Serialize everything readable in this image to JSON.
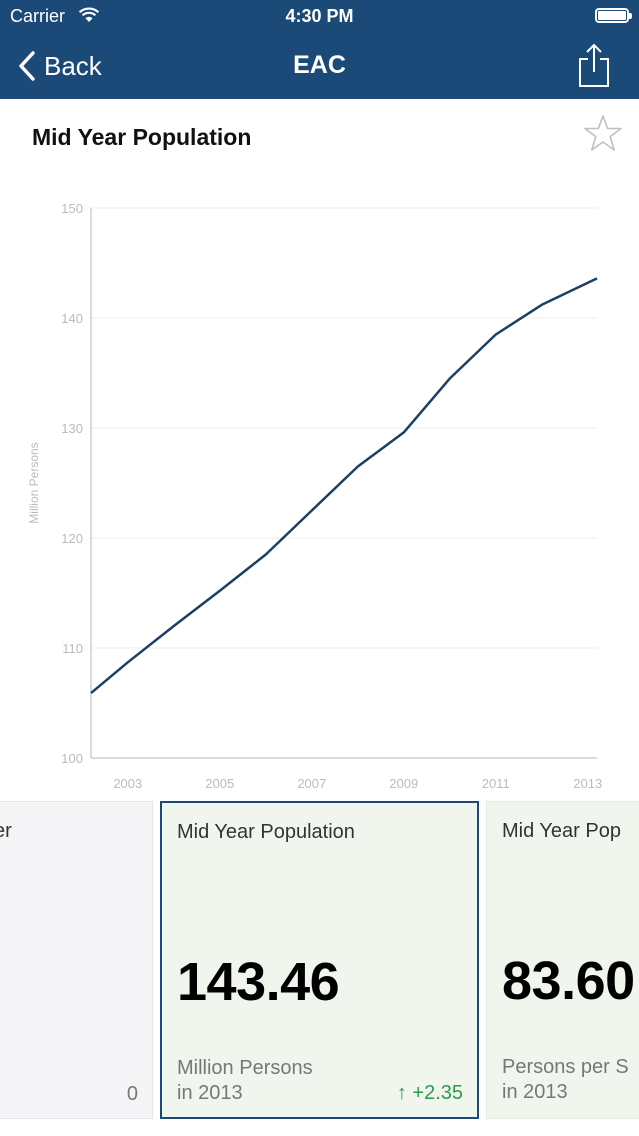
{
  "status_bar": {
    "carrier": "Carrier",
    "time": "4:30 PM"
  },
  "nav": {
    "back_label": "Back",
    "title": "EAC"
  },
  "page": {
    "title": "Mid Year Population"
  },
  "chart_data": {
    "type": "line",
    "title": "",
    "xlabel": "",
    "ylabel": "Million Persons",
    "xlim": [
      2002.2,
      2013.2
    ],
    "ylim": [
      100,
      150
    ],
    "x_ticks": [
      "2003",
      "2005",
      "2007",
      "2009",
      "2011",
      "2013"
    ],
    "y_ticks": [
      "100",
      "110",
      "120",
      "130",
      "140",
      "150"
    ],
    "grid": true,
    "color": "#1c3f66",
    "series": [
      {
        "x": [
          2002.2,
          2003,
          2004,
          2005,
          2006,
          2007,
          2008,
          2009,
          2010,
          2011,
          2012,
          2013.2
        ],
        "values": [
          105.9,
          108.7,
          112.0,
          115.2,
          118.5,
          122.5,
          126.5,
          129.6,
          134.5,
          138.5,
          141.2,
          143.6
        ]
      }
    ]
  },
  "cards": {
    "left": {
      "title_fragment": "ver",
      "value": "0"
    },
    "main": {
      "title": "Mid Year Population",
      "value": "143.46",
      "unit": "Million Persons",
      "year": "in 2013",
      "change": "↑ +2.35"
    },
    "right": {
      "title": "Mid Year Pop",
      "value": "83.60",
      "unit": "Persons per S",
      "year": "in 2013"
    }
  },
  "colors": {
    "nav_background": "#1c4a78",
    "card_highlight": "#f0f6ee",
    "positive_change": "#2e9a4e"
  }
}
